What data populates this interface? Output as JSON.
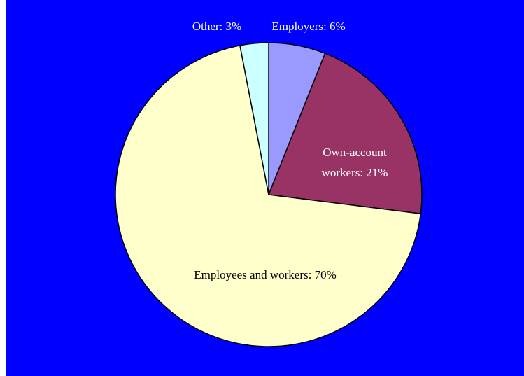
{
  "chart_data": {
    "type": "pie",
    "title": "",
    "slices": [
      {
        "label": "Employers: 6%",
        "category": "Employers",
        "value": 6,
        "color": "#9999ff",
        "label_color": "#ffffff"
      },
      {
        "label": "Own-account workers: 21%",
        "lines": [
          "Own-account",
          "workers: 21%"
        ],
        "category": "Own-account workers",
        "value": 21,
        "color": "#993366",
        "label_color": "#ffffff"
      },
      {
        "label": "Employees and workers: 70%",
        "category": "Employees and workers",
        "value": 70,
        "color": "#ffffcc",
        "label_color": "#000000"
      },
      {
        "label": "Other: 3%",
        "category": "Other",
        "value": 3,
        "color": "#ccffff",
        "label_color": "#ffffff"
      }
    ],
    "start_angle": "12 o'clock",
    "direction": "clockwise",
    "background_color": "#0000ff",
    "legend": "none"
  }
}
